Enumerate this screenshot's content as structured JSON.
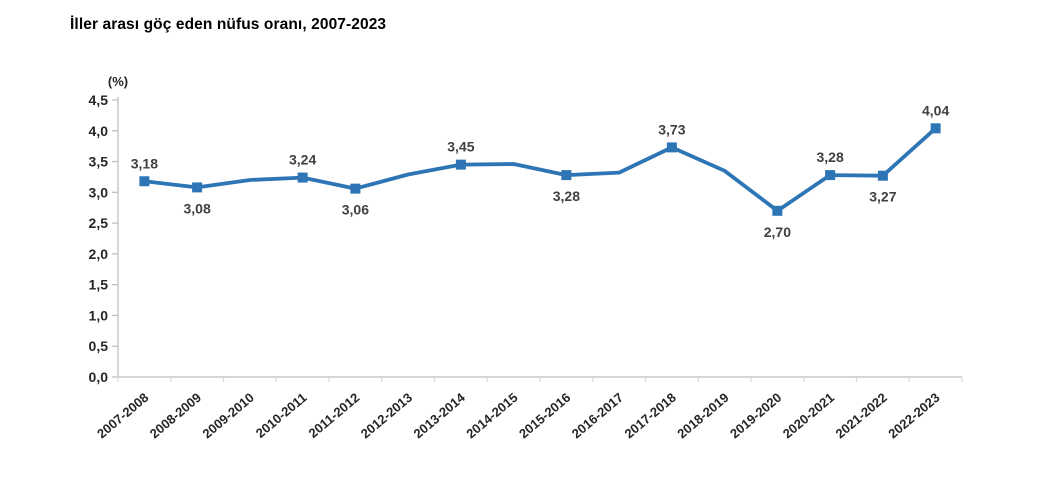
{
  "header": {
    "title": "İller arası göç eden nüfus oranı, 2007-2023"
  },
  "chart_data": {
    "type": "line",
    "title": "İller arası göç eden nüfus oranı, 2007-2023",
    "unit_label": "(%)",
    "xlabel": "",
    "ylabel": "(%)",
    "categories": [
      "2007-2008",
      "2008-2009",
      "2009-2010",
      "2010-2011",
      "2011-2012",
      "2012-2013",
      "2013-2014",
      "2014-2015",
      "2015-2016",
      "2016-2017",
      "2017-2018",
      "2018-2019",
      "2019-2020",
      "2020-2021",
      "2021-2022",
      "2022-2023"
    ],
    "values": [
      3.18,
      3.08,
      3.2,
      3.24,
      3.06,
      3.29,
      3.45,
      3.46,
      3.28,
      3.32,
      3.73,
      3.35,
      2.7,
      3.28,
      3.27,
      4.04
    ],
    "data_labels": [
      {
        "index": 0,
        "text": "3,18",
        "position": "above"
      },
      {
        "index": 1,
        "text": "3,08",
        "position": "below"
      },
      {
        "index": 3,
        "text": "3,24",
        "position": "above"
      },
      {
        "index": 4,
        "text": "3,06",
        "position": "below"
      },
      {
        "index": 6,
        "text": "3,45",
        "position": "above"
      },
      {
        "index": 8,
        "text": "3,28",
        "position": "below"
      },
      {
        "index": 10,
        "text": "3,73",
        "position": "above"
      },
      {
        "index": 12,
        "text": "2,70",
        "position": "below"
      },
      {
        "index": 13,
        "text": "3,28",
        "position": "above"
      },
      {
        "index": 14,
        "text": "3,27",
        "position": "below"
      },
      {
        "index": 15,
        "text": "4,04",
        "position": "above"
      }
    ],
    "ylim": [
      0.0,
      4.5
    ],
    "y_tick_step": 0.5,
    "y_tick_labels": [
      "0,0",
      "0,5",
      "1,0",
      "1,5",
      "2,0",
      "2,5",
      "3,0",
      "3,5",
      "4,0",
      "4,5"
    ],
    "grid": false,
    "legend": "none",
    "decimal_separator": "comma",
    "colors": {
      "line": "#2E75B6",
      "marker": "#2E75B6",
      "data_label": "#404040",
      "axis_line": "#BFBFBF",
      "x_tick": "#D9D9D9",
      "tick_text": "#262626",
      "title_text": "#000000"
    }
  }
}
